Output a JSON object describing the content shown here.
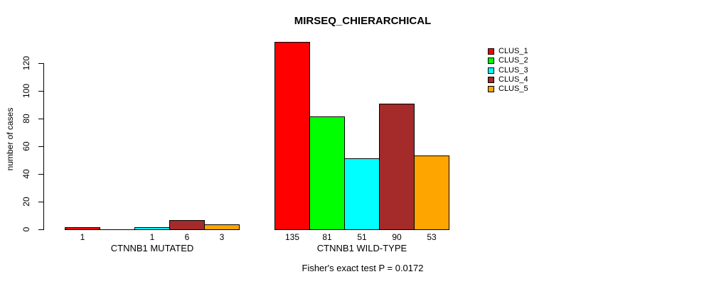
{
  "chart_data": {
    "type": "bar",
    "title": "MIRSEQ_CHIERARCHICAL",
    "ylabel": "number of cases",
    "xlabel": "",
    "ylim": [
      0,
      137
    ],
    "yticks": [
      0,
      20,
      40,
      60,
      80,
      100,
      120
    ],
    "grid": false,
    "legend_position": "top-right-inside",
    "categories": [
      "CTNNB1 MUTATED",
      "CTNNB1 WILD-TYPE"
    ],
    "series": [
      {
        "name": "CLUS_1",
        "color": "#ff0000",
        "values": [
          1,
          135
        ]
      },
      {
        "name": "CLUS_2",
        "color": "#00ff00",
        "values": [
          0,
          81
        ]
      },
      {
        "name": "CLUS_3",
        "color": "#00ffff",
        "values": [
          1,
          51
        ]
      },
      {
        "name": "CLUS_4",
        "color": "#a52a2a",
        "values": [
          6,
          90
        ]
      },
      {
        "name": "CLUS_5",
        "color": "#ffa500",
        "values": [
          3,
          53
        ]
      }
    ],
    "bar_value_labels": [
      [
        "1",
        "",
        "1",
        "6",
        "3"
      ],
      [
        "135",
        "81",
        "51",
        "90",
        "53"
      ]
    ],
    "annotation": "Fisher's exact test P = 0.0172"
  }
}
